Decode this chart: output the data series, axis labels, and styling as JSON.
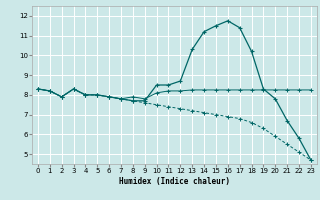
{
  "title": "",
  "xlabel": "Humidex (Indice chaleur)",
  "bg_color": "#cce8e8",
  "grid_color": "#ffffff",
  "line_color": "#006666",
  "xlim": [
    -0.5,
    23.5
  ],
  "ylim": [
    4.5,
    12.5
  ],
  "yticks": [
    5,
    6,
    7,
    8,
    9,
    10,
    11,
    12
  ],
  "xticks": [
    0,
    1,
    2,
    3,
    4,
    5,
    6,
    7,
    8,
    9,
    10,
    11,
    12,
    13,
    14,
    15,
    16,
    17,
    18,
    19,
    20,
    21,
    22,
    23
  ],
  "line1_x": [
    0,
    1,
    2,
    3,
    4,
    5,
    6,
    7,
    8,
    9,
    10,
    11,
    12,
    13,
    14,
    15,
    16,
    17,
    18,
    19,
    20,
    21,
    22,
    23
  ],
  "line1_y": [
    8.3,
    8.2,
    7.9,
    8.3,
    8.0,
    8.0,
    7.9,
    7.8,
    7.7,
    7.7,
    8.5,
    8.5,
    8.7,
    10.3,
    11.2,
    11.5,
    11.75,
    11.4,
    10.2,
    8.3,
    7.8,
    6.7,
    5.8,
    4.7
  ],
  "line2_x": [
    0,
    1,
    2,
    3,
    4,
    5,
    6,
    7,
    8,
    9,
    10,
    11,
    12,
    13,
    14,
    15,
    16,
    17,
    18,
    19,
    20,
    21,
    22,
    23
  ],
  "line2_y": [
    8.3,
    8.2,
    7.9,
    8.3,
    8.0,
    8.0,
    7.9,
    7.8,
    7.9,
    7.8,
    8.1,
    8.2,
    8.2,
    8.25,
    8.25,
    8.25,
    8.25,
    8.25,
    8.25,
    8.25,
    8.25,
    8.25,
    8.25,
    8.25
  ],
  "line3_x": [
    0,
    1,
    2,
    3,
    4,
    5,
    6,
    7,
    8,
    9,
    10,
    11,
    12,
    13,
    14,
    15,
    16,
    17,
    18,
    19,
    20,
    21,
    22,
    23
  ],
  "line3_y": [
    8.3,
    8.2,
    7.9,
    8.3,
    8.0,
    8.0,
    7.9,
    7.8,
    7.7,
    7.6,
    7.5,
    7.4,
    7.3,
    7.2,
    7.1,
    7.0,
    6.9,
    6.8,
    6.6,
    6.3,
    5.9,
    5.5,
    5.1,
    4.7
  ]
}
